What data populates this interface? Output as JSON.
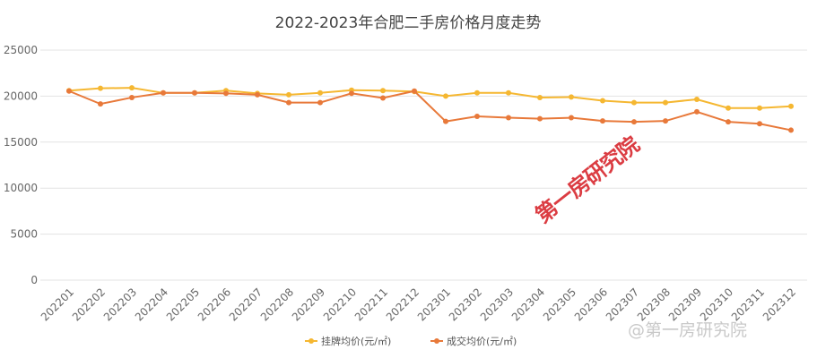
{
  "chart_data": {
    "type": "line",
    "title": "2022-2023年合肥二手房价格月度走势",
    "xlabel": "",
    "ylabel": "",
    "ylim": [
      0,
      25000
    ],
    "yticks": [
      0,
      5000,
      10000,
      15000,
      20000,
      25000
    ],
    "grid": true,
    "legend_position": "bottom",
    "categories": [
      "202201",
      "202202",
      "202203",
      "202204",
      "202205",
      "202206",
      "202207",
      "202208",
      "202209",
      "202210",
      "202211",
      "202212",
      "202301",
      "202302",
      "202303",
      "202304",
      "202305",
      "202306",
      "202307",
      "202308",
      "202309",
      "202310",
      "202311",
      "202312"
    ],
    "series": [
      {
        "name": "挂牌均价(元/㎡)",
        "color": "#f5b731",
        "values": [
          20600,
          20850,
          20900,
          20350,
          20350,
          20600,
          20300,
          20150,
          20350,
          20650,
          20600,
          20500,
          20000,
          20350,
          20350,
          19850,
          19900,
          19500,
          19300,
          19300,
          19650,
          18700,
          18700,
          18900
        ]
      },
      {
        "name": "成交均价(元/㎡)",
        "color": "#e8793a",
        "values": [
          20550,
          19150,
          19850,
          20350,
          20350,
          20300,
          20150,
          19300,
          19300,
          20300,
          19800,
          20550,
          17250,
          17800,
          17650,
          17550,
          17650,
          17300,
          17200,
          17300,
          18300,
          17200,
          17000,
          16300
        ]
      }
    ]
  },
  "watermarks": {
    "center": "第一房研究院",
    "corner": "@第一房研究院"
  }
}
